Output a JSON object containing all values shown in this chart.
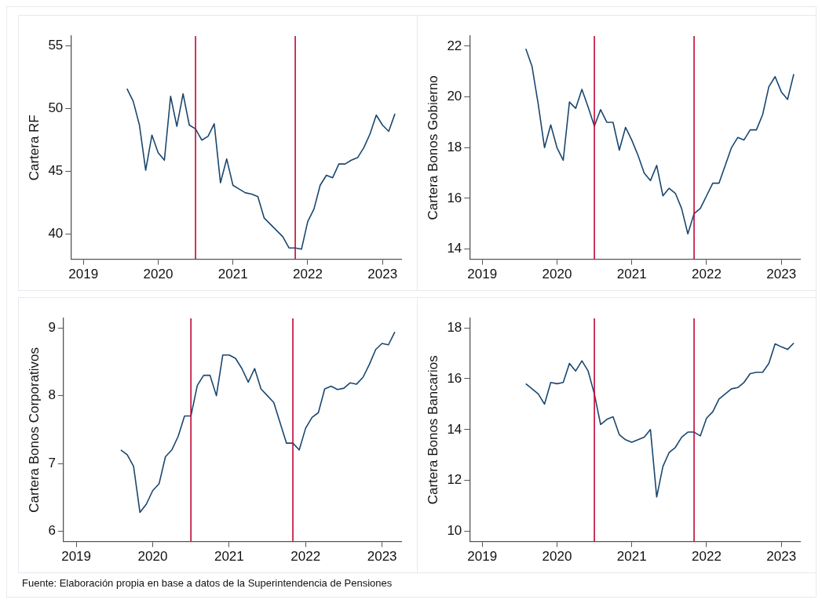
{
  "chart_data": [
    {
      "type": "line",
      "ylabel": "Cartera RF",
      "x": [
        "2019-08",
        "2019-09",
        "2019-10",
        "2019-11",
        "2019-12",
        "2020-01",
        "2020-02",
        "2020-03",
        "2020-04",
        "2020-05",
        "2020-06",
        "2020-07",
        "2020-08",
        "2020-09",
        "2020-10",
        "2020-11",
        "2020-12",
        "2021-01",
        "2021-02",
        "2021-03",
        "2021-04",
        "2021-05",
        "2021-06",
        "2021-07",
        "2021-08",
        "2021-09",
        "2021-10",
        "2021-11",
        "2021-12",
        "2022-01",
        "2022-02",
        "2022-03",
        "2022-04",
        "2022-05",
        "2022-06",
        "2022-07",
        "2022-08",
        "2022-09",
        "2022-10",
        "2022-11",
        "2022-12",
        "2023-01",
        "2023-02",
        "2023-03"
      ],
      "series": [
        {
          "color": "#1a476f",
          "values": [
            51.6,
            50.6,
            48.7,
            45.1,
            47.9,
            46.5,
            45.9,
            51.0,
            48.6,
            51.2,
            48.7,
            48.4,
            47.5,
            47.8,
            48.8,
            44.1,
            46.0,
            43.9,
            43.6,
            43.3,
            43.2,
            43.0,
            41.3,
            40.8,
            40.3,
            39.8,
            38.9,
            38.9,
            38.8,
            41.0,
            42.0,
            43.9,
            44.7,
            44.5,
            45.6,
            45.6,
            45.9,
            46.1,
            46.9,
            48.0,
            49.5,
            48.7,
            48.2,
            49.6
          ]
        }
      ],
      "xlim": [
        "2018-11",
        "2023-04"
      ],
      "xticks": [
        "2019",
        "2020",
        "2021",
        "2022",
        "2023"
      ],
      "ylim": [
        38,
        55.8
      ],
      "yticks": [
        40,
        45,
        50,
        55
      ],
      "ref_lines": [
        {
          "axis": "x",
          "value": "2020-07",
          "color": "#c10534"
        },
        {
          "axis": "x",
          "value": "2021-11",
          "color": "#c10534"
        }
      ],
      "grid": false,
      "legend": false
    },
    {
      "type": "line",
      "ylabel": "Cartera Bonos Gobierno",
      "x": [
        "2019-08",
        "2019-09",
        "2019-10",
        "2019-11",
        "2019-12",
        "2020-01",
        "2020-02",
        "2020-03",
        "2020-04",
        "2020-05",
        "2020-06",
        "2020-07",
        "2020-08",
        "2020-09",
        "2020-10",
        "2020-11",
        "2020-12",
        "2021-01",
        "2021-02",
        "2021-03",
        "2021-04",
        "2021-05",
        "2021-06",
        "2021-07",
        "2021-08",
        "2021-09",
        "2021-10",
        "2021-11",
        "2021-12",
        "2022-01",
        "2022-02",
        "2022-03",
        "2022-04",
        "2022-05",
        "2022-06",
        "2022-07",
        "2022-08",
        "2022-09",
        "2022-10",
        "2022-11",
        "2022-12",
        "2023-01",
        "2023-02",
        "2023-03"
      ],
      "series": [
        {
          "color": "#1a476f",
          "values": [
            21.9,
            21.2,
            19.7,
            18.0,
            18.9,
            18.0,
            17.5,
            19.8,
            19.55,
            20.3,
            19.6,
            18.85,
            19.5,
            19.0,
            19.0,
            17.9,
            18.8,
            18.3,
            17.7,
            17.0,
            16.7,
            17.3,
            16.1,
            16.4,
            16.2,
            15.6,
            14.6,
            15.4,
            15.6,
            16.1,
            16.6,
            16.6,
            17.3,
            18.0,
            18.4,
            18.3,
            18.7,
            18.7,
            19.3,
            20.4,
            20.8,
            20.2,
            19.9,
            20.9
          ]
        }
      ],
      "xlim": [
        "2018-11",
        "2023-04"
      ],
      "xticks": [
        "2019",
        "2020",
        "2021",
        "2022",
        "2023"
      ],
      "ylim": [
        13.6,
        22.4
      ],
      "yticks": [
        14,
        16,
        18,
        20,
        22
      ],
      "ref_lines": [
        {
          "axis": "x",
          "value": "2020-07",
          "color": "#c10534"
        },
        {
          "axis": "x",
          "value": "2021-11",
          "color": "#c10534"
        }
      ],
      "grid": false,
      "legend": false
    },
    {
      "type": "line",
      "ylabel": "Cartera Bonos Corporativos",
      "x": [
        "2019-08",
        "2019-09",
        "2019-10",
        "2019-11",
        "2019-12",
        "2020-01",
        "2020-02",
        "2020-03",
        "2020-04",
        "2020-05",
        "2020-06",
        "2020-07",
        "2020-08",
        "2020-09",
        "2020-10",
        "2020-11",
        "2020-12",
        "2021-01",
        "2021-02",
        "2021-03",
        "2021-04",
        "2021-05",
        "2021-06",
        "2021-07",
        "2021-08",
        "2021-09",
        "2021-10",
        "2021-11",
        "2021-12",
        "2022-01",
        "2022-02",
        "2022-03",
        "2022-04",
        "2022-05",
        "2022-06",
        "2022-07",
        "2022-08",
        "2022-09",
        "2022-10",
        "2022-11",
        "2022-12",
        "2023-01",
        "2023-02",
        "2023-03"
      ],
      "series": [
        {
          "color": "#1a476f",
          "values": [
            7.2,
            7.13,
            6.96,
            6.28,
            6.4,
            6.6,
            6.7,
            7.1,
            7.2,
            7.4,
            7.7,
            7.7,
            8.15,
            8.3,
            8.3,
            8.0,
            8.6,
            8.6,
            8.55,
            8.4,
            8.2,
            8.4,
            8.1,
            8.0,
            7.9,
            7.6,
            7.3,
            7.3,
            7.2,
            7.52,
            7.68,
            7.75,
            8.1,
            8.14,
            8.09,
            8.11,
            8.19,
            8.17,
            8.27,
            8.46,
            8.68,
            8.77,
            8.75,
            8.94
          ]
        }
      ],
      "xlim": [
        "2018-11",
        "2023-04"
      ],
      "xticks": [
        "2019",
        "2020",
        "2021",
        "2022",
        "2023"
      ],
      "ylim": [
        5.85,
        9.14
      ],
      "yticks": [
        6,
        7,
        8,
        9
      ],
      "ref_lines": [
        {
          "axis": "x",
          "value": "2020-07",
          "color": "#c10534"
        },
        {
          "axis": "x",
          "value": "2021-11",
          "color": "#c10534"
        }
      ],
      "grid": false,
      "legend": false
    },
    {
      "type": "line",
      "ylabel": "Cartera Bonos Bancarios",
      "x": [
        "2019-08",
        "2019-09",
        "2019-10",
        "2019-11",
        "2019-12",
        "2020-01",
        "2020-02",
        "2020-03",
        "2020-04",
        "2020-05",
        "2020-06",
        "2020-07",
        "2020-08",
        "2020-09",
        "2020-10",
        "2020-11",
        "2020-12",
        "2021-01",
        "2021-02",
        "2021-03",
        "2021-04",
        "2021-05",
        "2021-06",
        "2021-07",
        "2021-08",
        "2021-09",
        "2021-10",
        "2021-11",
        "2021-12",
        "2022-01",
        "2022-02",
        "2022-03",
        "2022-04",
        "2022-05",
        "2022-06",
        "2022-07",
        "2022-08",
        "2022-09",
        "2022-10",
        "2022-11",
        "2022-12",
        "2023-01",
        "2023-02",
        "2023-03"
      ],
      "series": [
        {
          "color": "#1a476f",
          "values": [
            15.8,
            15.6,
            15.4,
            15.0,
            15.85,
            15.8,
            15.85,
            16.6,
            16.3,
            16.7,
            16.3,
            15.4,
            14.2,
            14.4,
            14.5,
            13.8,
            13.6,
            13.5,
            13.6,
            13.7,
            14.0,
            11.35,
            12.55,
            13.1,
            13.3,
            13.7,
            13.9,
            13.9,
            13.75,
            14.45,
            14.7,
            15.2,
            15.4,
            15.6,
            15.65,
            15.85,
            16.2,
            16.25,
            16.25,
            16.6,
            17.37,
            17.25,
            17.15,
            17.4
          ]
        }
      ],
      "xlim": [
        "2018-11",
        "2023-04"
      ],
      "xticks": [
        "2019",
        "2020",
        "2021",
        "2022",
        "2023"
      ],
      "ylim": [
        9.6,
        18.37
      ],
      "yticks": [
        10,
        12,
        14,
        16,
        18
      ],
      "ref_lines": [
        {
          "axis": "x",
          "value": "2020-07",
          "color": "#c10534"
        },
        {
          "axis": "x",
          "value": "2021-11",
          "color": "#c10534"
        }
      ],
      "grid": false,
      "legend": false,
      "annotations": [
        "Fuente: Elaboración propia en base a datos de la Superintendencia de Pensiones"
      ]
    }
  ]
}
